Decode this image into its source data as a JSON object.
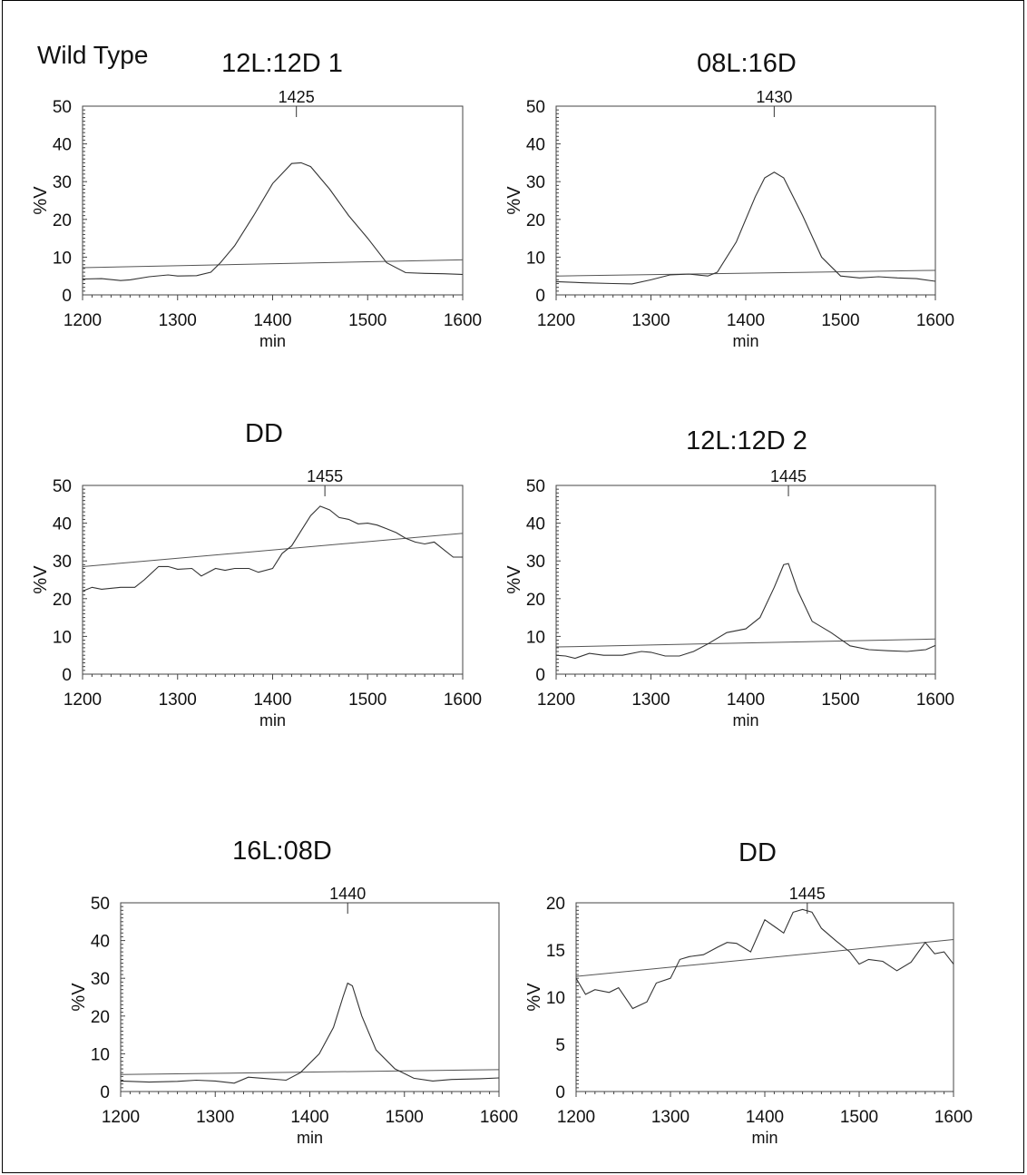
{
  "figure_label": "Wild Type",
  "chart_data": [
    {
      "type": "line",
      "title": "12L:12D 1",
      "xlabel": "min",
      "ylabel": "%V",
      "xlim": [
        1200,
        1600
      ],
      "ylim": [
        0,
        50
      ],
      "xticks": [
        1200,
        1300,
        1400,
        1500,
        1600
      ],
      "yticks": [
        0,
        10,
        20,
        30,
        40,
        50
      ],
      "peak_label": "1425",
      "peak_x": 1425,
      "trend": {
        "x": [
          1200,
          1600
        ],
        "y": [
          7.2,
          9.3
        ]
      },
      "series": [
        {
          "x": [
            1200,
            1220,
            1240,
            1250,
            1270,
            1290,
            1300,
            1320,
            1335,
            1345,
            1360,
            1380,
            1400,
            1420,
            1430,
            1440,
            1460,
            1480,
            1500,
            1520,
            1540,
            1560,
            1580,
            1600
          ],
          "y": [
            4.2,
            4.3,
            3.8,
            4.0,
            4.8,
            5.3,
            5.0,
            5.1,
            6.0,
            8.5,
            13,
            21,
            29.5,
            34.8,
            35,
            34,
            28,
            21,
            15,
            8.5,
            5.9,
            5.7,
            5.6,
            5.4
          ]
        }
      ]
    },
    {
      "type": "line",
      "title": "08L:16D",
      "xlabel": "min",
      "ylabel": "%V",
      "xlim": [
        1200,
        1600
      ],
      "ylim": [
        0,
        50
      ],
      "xticks": [
        1200,
        1300,
        1400,
        1500,
        1600
      ],
      "yticks": [
        0,
        10,
        20,
        30,
        40,
        50
      ],
      "peak_label": "1430",
      "peak_x": 1430,
      "trend": {
        "x": [
          1200,
          1600
        ],
        "y": [
          5.0,
          6.5
        ]
      },
      "series": [
        {
          "x": [
            1200,
            1230,
            1260,
            1280,
            1300,
            1320,
            1340,
            1360,
            1370,
            1390,
            1410,
            1420,
            1430,
            1440,
            1460,
            1480,
            1500,
            1520,
            1540,
            1560,
            1580,
            1600
          ],
          "y": [
            3.5,
            3.2,
            3.0,
            2.9,
            4.0,
            5.3,
            5.5,
            5.0,
            6.0,
            14,
            26,
            31,
            32.5,
            31,
            21,
            10,
            5.0,
            4.5,
            4.8,
            4.5,
            4.3,
            3.6
          ]
        }
      ]
    },
    {
      "type": "line",
      "title": "DD",
      "xlabel": "min",
      "ylabel": "%V",
      "xlim": [
        1200,
        1600
      ],
      "ylim": [
        0,
        50
      ],
      "xticks": [
        1200,
        1300,
        1400,
        1500,
        1600
      ],
      "yticks": [
        0,
        10,
        20,
        30,
        40,
        50
      ],
      "peak_label": "1455",
      "peak_x": 1455,
      "trend": {
        "x": [
          1200,
          1600
        ],
        "y": [
          28.5,
          37.3
        ]
      },
      "series": [
        {
          "x": [
            1200,
            1210,
            1220,
            1240,
            1255,
            1265,
            1280,
            1290,
            1300,
            1315,
            1325,
            1340,
            1350,
            1360,
            1375,
            1385,
            1400,
            1410,
            1420,
            1430,
            1440,
            1450,
            1460,
            1470,
            1480,
            1490,
            1500,
            1510,
            1520,
            1530,
            1540,
            1550,
            1560,
            1570,
            1580,
            1590,
            1600
          ],
          "y": [
            22,
            23,
            22.5,
            23,
            23,
            25,
            28.5,
            28.5,
            27.8,
            28,
            26,
            28,
            27.5,
            28,
            28,
            27,
            28,
            32,
            34,
            38,
            42,
            44.5,
            43.5,
            41.5,
            41,
            39.8,
            40,
            39.5,
            38.5,
            37.5,
            36,
            35,
            34.5,
            35,
            33,
            31,
            31
          ]
        }
      ]
    },
    {
      "type": "line",
      "title": "12L:12D 2",
      "xlabel": "min",
      "ylabel": "%V",
      "xlim": [
        1200,
        1600
      ],
      "ylim": [
        0,
        50
      ],
      "xticks": [
        1200,
        1300,
        1400,
        1500,
        1600
      ],
      "yticks": [
        0,
        10,
        20,
        30,
        40,
        50
      ],
      "peak_label": "1445",
      "peak_x": 1445,
      "trend": {
        "x": [
          1200,
          1600
        ],
        "y": [
          7.2,
          9.3
        ]
      },
      "series": [
        {
          "x": [
            1200,
            1210,
            1220,
            1235,
            1250,
            1270,
            1290,
            1300,
            1315,
            1330,
            1345,
            1360,
            1380,
            1400,
            1415,
            1430,
            1440,
            1445,
            1455,
            1470,
            1490,
            1510,
            1530,
            1550,
            1570,
            1590,
            1600
          ],
          "y": [
            5,
            4.8,
            4.2,
            5.5,
            5.0,
            5.0,
            6.0,
            5.8,
            4.8,
            4.8,
            6.0,
            8.0,
            11,
            12,
            15,
            23,
            29,
            29.3,
            22,
            14,
            11,
            7.5,
            6.5,
            6.2,
            6.0,
            6.5,
            7.6
          ]
        }
      ]
    },
    {
      "type": "line",
      "title": "16L:08D",
      "xlabel": "min",
      "ylabel": "%V",
      "xlim": [
        1200,
        1600
      ],
      "ylim": [
        0,
        50
      ],
      "xticks": [
        1200,
        1300,
        1400,
        1500,
        1600
      ],
      "yticks": [
        0,
        10,
        20,
        30,
        40,
        50
      ],
      "peak_label": "1440",
      "peak_x": 1440,
      "trend": {
        "x": [
          1200,
          1600
        ],
        "y": [
          4.5,
          5.8
        ]
      },
      "series": [
        {
          "x": [
            1200,
            1230,
            1260,
            1280,
            1300,
            1320,
            1335,
            1350,
            1375,
            1390,
            1410,
            1425,
            1435,
            1440,
            1445,
            1455,
            1470,
            1490,
            1510,
            1530,
            1550,
            1580,
            1600
          ],
          "y": [
            2.8,
            2.5,
            2.7,
            3.0,
            2.8,
            2.2,
            3.8,
            3.5,
            3.0,
            5.0,
            10,
            17,
            25,
            28.7,
            28,
            20,
            11,
            6,
            3.5,
            2.8,
            3.2,
            3.4,
            3.6
          ]
        }
      ]
    },
    {
      "type": "line",
      "title": "DD",
      "xlabel": "min",
      "ylabel": "%V",
      "xlim": [
        1200,
        1600
      ],
      "ylim": [
        0,
        20
      ],
      "xticks": [
        1200,
        1300,
        1400,
        1500,
        1600
      ],
      "yticks": [
        0,
        5,
        10,
        15,
        20
      ],
      "peak_label": "1445",
      "peak_x": 1445,
      "trend": {
        "x": [
          1200,
          1600
        ],
        "y": [
          12.2,
          16.1
        ]
      },
      "series": [
        {
          "x": [
            1200,
            1210,
            1220,
            1235,
            1245,
            1260,
            1275,
            1285,
            1300,
            1310,
            1320,
            1335,
            1350,
            1360,
            1370,
            1385,
            1400,
            1410,
            1420,
            1430,
            1440,
            1450,
            1460,
            1475,
            1490,
            1500,
            1510,
            1525,
            1540,
            1555,
            1570,
            1580,
            1590,
            1600
          ],
          "y": [
            12,
            10.3,
            10.8,
            10.5,
            11,
            8.8,
            9.5,
            11.5,
            12,
            14,
            14.3,
            14.5,
            15.3,
            15.8,
            15.7,
            14.8,
            18.2,
            17.5,
            16.8,
            19,
            19.3,
            19,
            17.3,
            16,
            14.8,
            13.5,
            14,
            13.8,
            12.8,
            13.7,
            15.8,
            14.6,
            14.8,
            13.5
          ]
        }
      ]
    }
  ]
}
